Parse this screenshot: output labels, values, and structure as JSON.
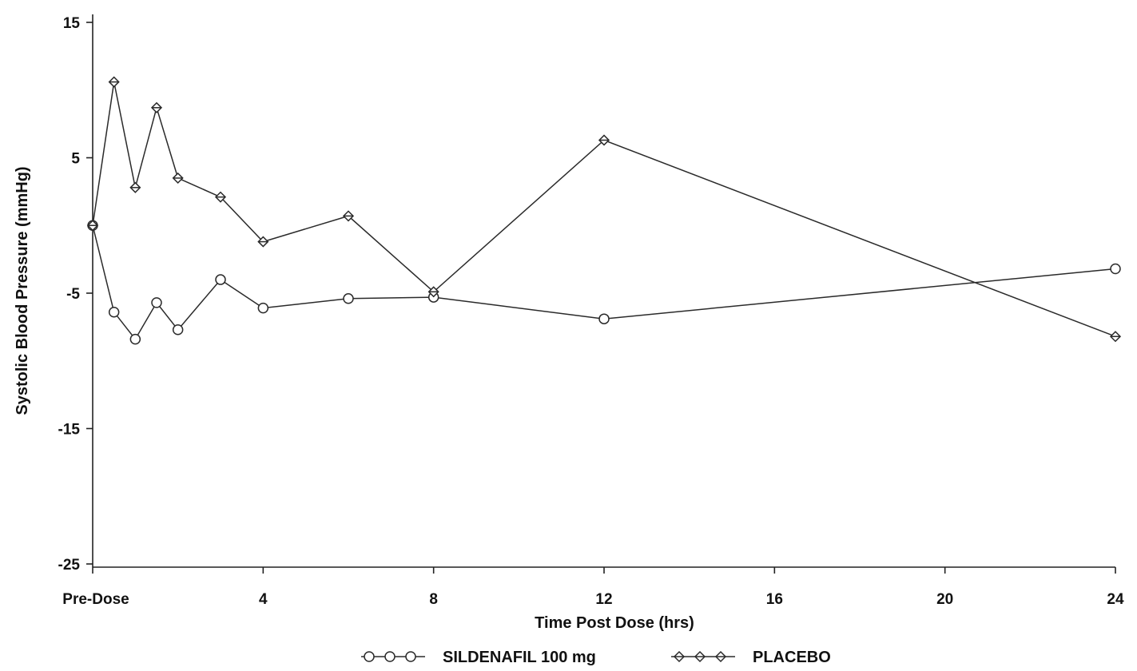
{
  "chart_data": {
    "type": "line",
    "xlabel": "Time Post Dose (hrs)",
    "ylabel": "Systolic Blood Pressure (mmHg)",
    "xlim": [
      0,
      24
    ],
    "ylim": [
      -25,
      15
    ],
    "x_ticks": [
      {
        "value": 0,
        "label": "Pre-Dose"
      },
      {
        "value": 4,
        "label": "4"
      },
      {
        "value": 8,
        "label": "8"
      },
      {
        "value": 12,
        "label": "12"
      },
      {
        "value": 16,
        "label": "16"
      },
      {
        "value": 20,
        "label": "20"
      },
      {
        "value": 24,
        "label": "24"
      }
    ],
    "y_ticks": [
      {
        "value": 15,
        "label": "15"
      },
      {
        "value": 5,
        "label": "5"
      },
      {
        "value": -5,
        "label": "-5"
      },
      {
        "value": -15,
        "label": "-15"
      },
      {
        "value": -25,
        "label": "-25"
      }
    ],
    "grid": false,
    "legend_position": "bottom",
    "series": [
      {
        "name": "SILDENAFIL 100 mg",
        "marker": "circle",
        "points": [
          {
            "x": 0,
            "y": 0
          },
          {
            "x": 0.5,
            "y": -6.4
          },
          {
            "x": 1,
            "y": -8.4
          },
          {
            "x": 1.5,
            "y": -5.7
          },
          {
            "x": 2,
            "y": -7.7
          },
          {
            "x": 3,
            "y": -4.0
          },
          {
            "x": 4,
            "y": -6.1
          },
          {
            "x": 6,
            "y": -5.4
          },
          {
            "x": 8,
            "y": -5.3
          },
          {
            "x": 12,
            "y": -6.9
          },
          {
            "x": 24,
            "y": -3.2
          }
        ]
      },
      {
        "name": "PLACEBO",
        "marker": "diamond",
        "points": [
          {
            "x": 0,
            "y": 0
          },
          {
            "x": 0.5,
            "y": 10.6
          },
          {
            "x": 1,
            "y": 2.8
          },
          {
            "x": 1.5,
            "y": 8.7
          },
          {
            "x": 2,
            "y": 3.5
          },
          {
            "x": 3,
            "y": 2.1
          },
          {
            "x": 4,
            "y": -1.2
          },
          {
            "x": 6,
            "y": 0.7
          },
          {
            "x": 8,
            "y": -4.9
          },
          {
            "x": 12,
            "y": 6.3
          },
          {
            "x": 24,
            "y": -8.2
          }
        ]
      }
    ]
  }
}
